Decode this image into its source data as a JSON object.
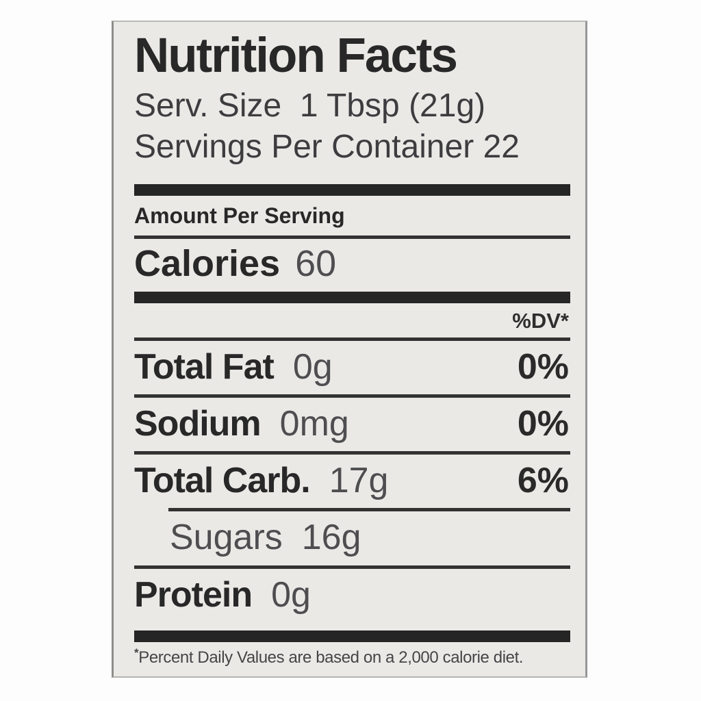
{
  "label": {
    "title": "Nutrition Facts",
    "serving_size": "Serv. Size  1 Tbsp (21g)",
    "servings_per_container": "Servings Per Container 22",
    "amount_per_serving": "Amount Per Serving",
    "calories": {
      "label": "Calories",
      "value": "60"
    },
    "dv_header": "%DV*",
    "rows": [
      {
        "name": "Total Fat",
        "amount": "0g",
        "dv": "0%"
      },
      {
        "name": "Sodium",
        "amount": "0mg",
        "dv": "0%"
      },
      {
        "name": "Total Carb.",
        "amount": "17g",
        "dv": "6%"
      },
      {
        "name": "Sugars",
        "amount": "16g",
        "dv": ""
      },
      {
        "name": "Protein",
        "amount": "0g",
        "dv": ""
      }
    ],
    "footnote": {
      "marker": "*",
      "text": "Percent Daily Values are based on a 2,000 calorie diet."
    },
    "colors": {
      "ink": "#282828",
      "value_gray": "#4e4e50",
      "paper": "#eae9e6"
    }
  }
}
